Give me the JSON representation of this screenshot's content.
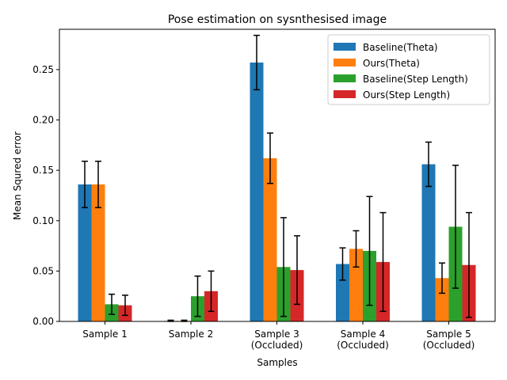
{
  "chart_data": {
    "type": "bar",
    "title": "Pose estimation on sysnthesised image",
    "xlabel": "Samples",
    "ylabel": "Mean Squred error",
    "ylim": [
      0,
      0.29
    ],
    "yticks": [
      0.0,
      0.05,
      0.1,
      0.15,
      0.2,
      0.25
    ],
    "ytick_labels": [
      "0.00",
      "0.05",
      "0.10",
      "0.15",
      "0.20",
      "0.25"
    ],
    "categories": [
      [
        "Sample 1"
      ],
      [
        "Sample 2"
      ],
      [
        "Sample 3",
        "(Occluded)"
      ],
      [
        "Sample 4",
        "(Occluded)"
      ],
      [
        "Sample 5",
        "(Occluded)"
      ]
    ],
    "legend_position": "top-right",
    "series": [
      {
        "name": "Baseline(Theta)",
        "color": "#1f77b4",
        "values": [
          0.136,
          0.0005,
          0.257,
          0.057,
          0.156
        ],
        "errors": [
          0.023,
          0.0007,
          0.027,
          0.016,
          0.022
        ]
      },
      {
        "name": "Ours(Theta)",
        "color": "#ff7f0e",
        "values": [
          0.136,
          0.0005,
          0.162,
          0.072,
          0.043
        ],
        "errors": [
          0.023,
          0.0007,
          0.025,
          0.018,
          0.015
        ]
      },
      {
        "name": "Baseline(Step Length)",
        "color": "#2ca02c",
        "values": [
          0.017,
          0.025,
          0.054,
          0.07,
          0.094
        ],
        "errors": [
          0.01,
          0.02,
          0.049,
          0.054,
          0.061
        ]
      },
      {
        "name": "Ours(Step Length)",
        "color": "#d62728",
        "values": [
          0.016,
          0.03,
          0.051,
          0.059,
          0.056
        ],
        "errors": [
          0.01,
          0.02,
          0.034,
          0.049,
          0.052
        ]
      }
    ]
  }
}
